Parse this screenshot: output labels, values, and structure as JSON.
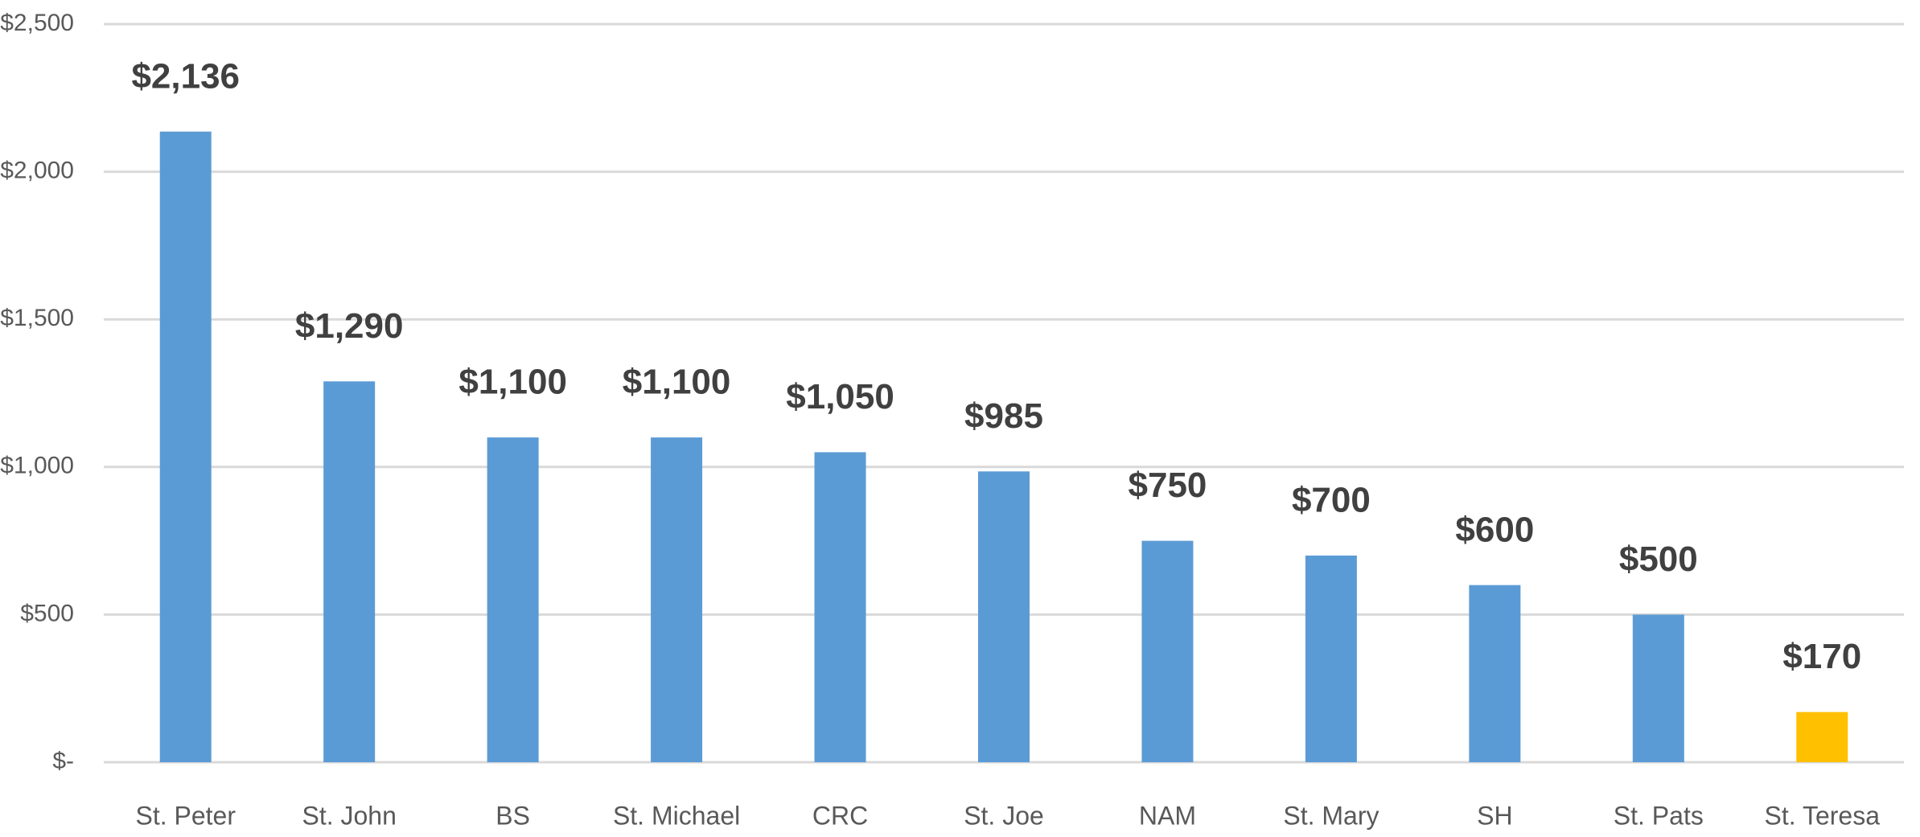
{
  "chart_data": {
    "type": "bar",
    "categories": [
      "St. Peter",
      "St. John",
      "BS",
      "St. Michael",
      "CRC",
      "St. Joe",
      "NAM",
      "St. Mary",
      "SH",
      "St. Pats",
      "St. Teresa"
    ],
    "values": [
      2136,
      1290,
      1100,
      1100,
      1050,
      985,
      750,
      700,
      600,
      500,
      170
    ],
    "value_labels": [
      "$2,136",
      "$1,290",
      "$1,100",
      "$1,100",
      "$1,050",
      "$985",
      "$750",
      "$700",
      "$600",
      "$500",
      "$170"
    ],
    "colors": [
      "#5b9bd5",
      "#5b9bd5",
      "#5b9bd5",
      "#5b9bd5",
      "#5b9bd5",
      "#5b9bd5",
      "#5b9bd5",
      "#5b9bd5",
      "#5b9bd5",
      "#5b9bd5",
      "#ffc000"
    ],
    "ylim": [
      0,
      2500
    ],
    "yticks": [
      {
        "value": 0,
        "label": "$-"
      },
      {
        "value": 500,
        "label": "$500"
      },
      {
        "value": 1000,
        "label": "$1,000"
      },
      {
        "value": 1500,
        "label": "$1,500"
      },
      {
        "value": 2000,
        "label": "$2,000"
      },
      {
        "value": 2500,
        "label": "$2,500"
      }
    ],
    "grid": true
  }
}
